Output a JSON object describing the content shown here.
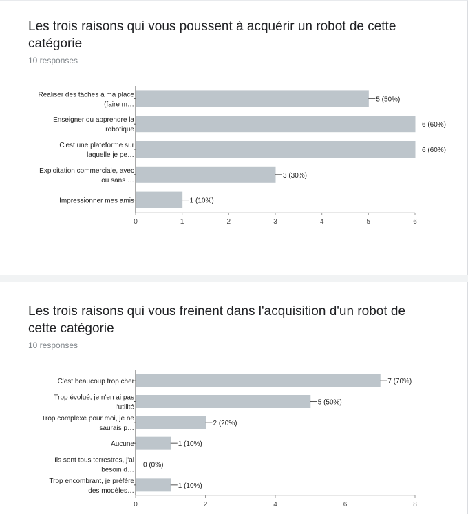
{
  "chart_data": [
    {
      "type": "bar",
      "orientation": "horizontal",
      "title": "Les trois raisons qui vous poussent à acquérir un robot de cette catégorie",
      "response_count": "10 responses",
      "categories": [
        [
          "Réaliser des tâches à ma place",
          "(faire m…"
        ],
        [
          "Enseigner ou apprendre la",
          "robotique"
        ],
        [
          "C'est une plateforme sur",
          "laquelle je pe…"
        ],
        [
          "Exploitation commerciale, avec",
          "ou sans …"
        ],
        [
          "Impressionner mes amis"
        ]
      ],
      "values": [
        5,
        6,
        6,
        3,
        1
      ],
      "value_labels": [
        "5 (50%)",
        "6 (60%)",
        "6 (60%)",
        "3 (30%)",
        "1 (10%)"
      ],
      "xlim": [
        0,
        6
      ],
      "ticks": [
        "0",
        "1",
        "2",
        "3",
        "4",
        "5",
        "6"
      ],
      "bar_color": "#bdc5cb"
    },
    {
      "type": "bar",
      "orientation": "horizontal",
      "title": "Les trois raisons qui vous freinent dans l'acquisition d'un robot de cette catégorie",
      "response_count": "10 responses",
      "categories": [
        [
          "C'est beaucoup trop cher"
        ],
        [
          "Trop évolué, je n'en ai pas",
          "l'utilité"
        ],
        [
          "Trop complexe pour moi, je ne",
          "saurais p…"
        ],
        [
          "Aucune"
        ],
        [
          "Ils sont tous terrestres, j'ai",
          "besoin d…"
        ],
        [
          "Trop encombrant, je préfère",
          "des modèles…"
        ]
      ],
      "values": [
        7,
        5,
        2,
        1,
        0,
        1
      ],
      "value_labels": [
        "7 (70%)",
        "5 (50%)",
        "2 (20%)",
        "1 (10%)",
        "0 (0%)",
        "1 (10%)"
      ],
      "xlim": [
        0,
        8
      ],
      "ticks": [
        "0",
        "2",
        "4",
        "6",
        "8"
      ],
      "bar_color": "#bdc5cb"
    }
  ]
}
